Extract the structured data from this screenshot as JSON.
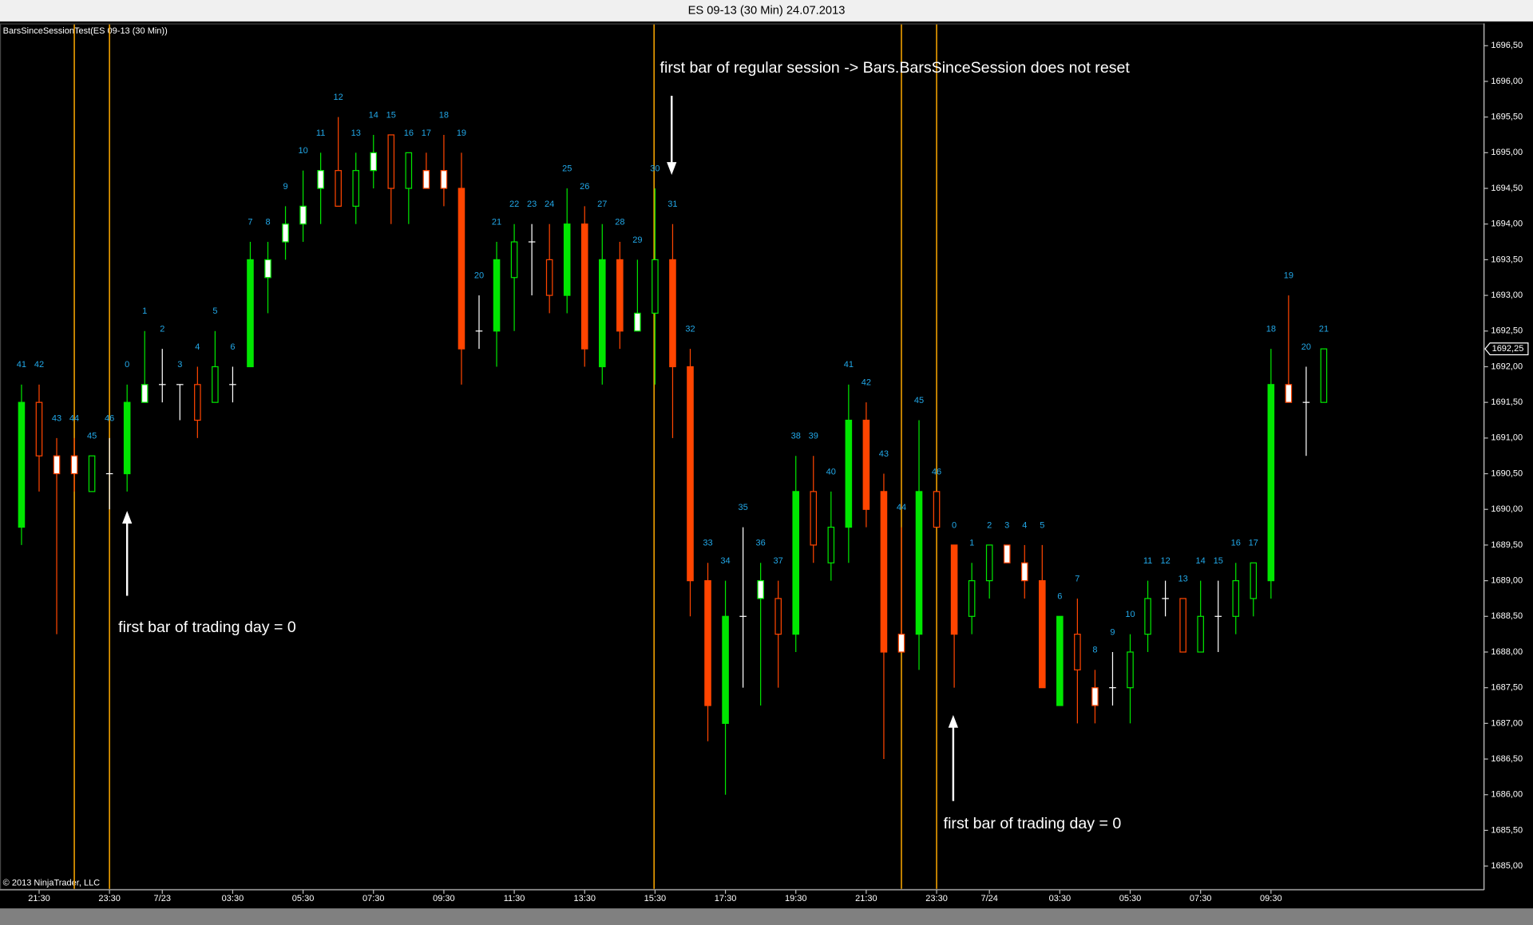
{
  "chart_data": {
    "type": "candlestick",
    "title": "ES 09-13 (30 Min)  24.07.2013",
    "indicator_label": "BarsSinceSessionTest(ES 09-13 (30 Min))",
    "copyright": "© 2013 NinjaTrader, LLC",
    "annotations": [
      "first bar of regular session -> Bars.BarsSinceSession does not reset",
      "first bar of trading day = 0",
      "first bar of trading day = 0"
    ],
    "categories": [
      null,
      "21:30",
      null,
      null,
      null,
      "23:30",
      null,
      null,
      "7/23",
      null,
      null,
      null,
      "03:30",
      null,
      null,
      null,
      "05:30",
      null,
      null,
      null,
      "07:30",
      null,
      null,
      null,
      "09:30",
      null,
      null,
      null,
      "11:30",
      null,
      null,
      null,
      "13:30",
      null,
      null,
      null,
      "15:30",
      null,
      null,
      null,
      "17:30",
      null,
      null,
      null,
      "19:30",
      null,
      null,
      null,
      "21:30",
      null,
      null,
      null,
      "23:30",
      null,
      null,
      "7/24",
      null,
      null,
      null,
      "03:30",
      null,
      null,
      null,
      "05:30",
      null,
      null,
      null,
      "07:30",
      null,
      null,
      null,
      "09:30",
      null,
      null,
      null
    ],
    "bar_labels": [
      41,
      42,
      43,
      44,
      45,
      46,
      0,
      1,
      2,
      3,
      4,
      5,
      6,
      7,
      8,
      9,
      10,
      11,
      12,
      13,
      14,
      15,
      16,
      17,
      18,
      19,
      20,
      21,
      22,
      23,
      24,
      25,
      26,
      27,
      28,
      29,
      30,
      31,
      32,
      33,
      34,
      35,
      36,
      37,
      38,
      39,
      40,
      41,
      42,
      43,
      44,
      45,
      46,
      0,
      1,
      2,
      3,
      4,
      5,
      6,
      7,
      8,
      9,
      10,
      11,
      12,
      13,
      14,
      15,
      16,
      17,
      18,
      19,
      20,
      21
    ],
    "open": [
      1689.75,
      1691.5,
      1690.75,
      1690.75,
      1690.25,
      1690.5,
      1690.5,
      1691.5,
      1691.75,
      1691.75,
      1691.75,
      1691.5,
      1691.75,
      1692,
      1693.25,
      1693.75,
      1694,
      1694.5,
      1694.75,
      1694.25,
      1694.75,
      1695.25,
      1694.5,
      1694.75,
      1694.75,
      1694.5,
      1692.5,
      1692.5,
      1693.25,
      1693.75,
      1693.5,
      1693,
      1694,
      1692,
      1693.5,
      1692.5,
      1692.75,
      1693.5,
      1692,
      1689,
      1687,
      1688.5,
      1688.75,
      1688.75,
      1688.25,
      1690.25,
      1689.25,
      1689.75,
      1691.25,
      1690.25,
      1688.25,
      1688.25,
      1690.25,
      1689.5,
      1688.5,
      1689,
      1689.5,
      1689.25,
      1689,
      1687.25,
      1688.25,
      1687.5,
      1687.5,
      1687.5,
      1688.25,
      1688.75,
      1688.75,
      1688,
      1688.5,
      1688.5,
      1688.75,
      1689,
      1691.75,
      1691.5,
      1691.5
    ],
    "high": [
      1691.75,
      1691.75,
      1691,
      1691,
      1690.75,
      1691,
      1691.75,
      1692.5,
      1692.25,
      1691.75,
      1692,
      1692.5,
      1692,
      1693.75,
      1693.75,
      1694.25,
      1694.75,
      1695,
      1695.5,
      1695,
      1695.25,
      1695.25,
      1695,
      1695,
      1695.25,
      1695,
      1693,
      1693.75,
      1694,
      1694,
      1694,
      1694.5,
      1694.25,
      1694,
      1693.75,
      1693.5,
      1694.5,
      1694,
      1692.25,
      1689.25,
      1689,
      1689.75,
      1689.25,
      1689,
      1690.75,
      1690.75,
      1690.25,
      1691.75,
      1691.5,
      1690.5,
      1689.75,
      1691.25,
      1690.25,
      1689.5,
      1689.25,
      1689.5,
      1689.5,
      1689.5,
      1689.5,
      1688.5,
      1688.75,
      1687.75,
      1688,
      1688.25,
      1689,
      1689,
      1688.75,
      1689,
      1689,
      1689.25,
      1689.25,
      1692.25,
      1693,
      1692,
      1692.25
    ],
    "low": [
      1689.5,
      1690.25,
      1688.25,
      1690.25,
      1690.25,
      1690,
      1690.25,
      1691.5,
      1691.5,
      1691.25,
      1691,
      1691.5,
      1691.5,
      1692,
      1692.75,
      1693.5,
      1693.75,
      1694,
      1694.25,
      1694,
      1694.5,
      1694,
      1694,
      1694.5,
      1694.25,
      1691.75,
      1692.25,
      1692,
      1692.5,
      1693,
      1692.75,
      1692.75,
      1692,
      1691.75,
      1692.25,
      1692.5,
      1691.75,
      1691,
      1688.5,
      1686.75,
      1686,
      1687.5,
      1687.25,
      1687.5,
      1688,
      1689.25,
      1689,
      1689.25,
      1689.75,
      1686.5,
      1688,
      1687.75,
      1689.75,
      1687.5,
      1688.25,
      1688.75,
      1689.25,
      1688.75,
      1687.5,
      1687.25,
      1687,
      1687,
      1687.25,
      1687,
      1688,
      1688.5,
      1688,
      1688,
      1688,
      1688.25,
      1688.5,
      1688.75,
      1691.5,
      1690.75,
      1691.5
    ],
    "close": [
      1691.5,
      1690.75,
      1690.5,
      1690.5,
      1690.75,
      1690.5,
      1691.5,
      1691.75,
      1691.75,
      1691.75,
      1691.25,
      1692,
      1691.75,
      1693.5,
      1693.5,
      1694,
      1694.25,
      1694.75,
      1694.25,
      1694.75,
      1695,
      1694.5,
      1695,
      1694.5,
      1694.5,
      1692.25,
      1692.5,
      1693.5,
      1693.75,
      1693.75,
      1693,
      1694,
      1692.25,
      1693.5,
      1692.5,
      1692.75,
      1693.5,
      1692,
      1689,
      1687.25,
      1688.5,
      1688.5,
      1689,
      1688.25,
      1690.25,
      1689.5,
      1689.75,
      1691.25,
      1690,
      1688,
      1688,
      1690.25,
      1689.75,
      1688.25,
      1689,
      1689.5,
      1689.25,
      1689,
      1687.5,
      1688.5,
      1687.75,
      1687.25,
      1687.5,
      1688,
      1688.75,
      1688.75,
      1688,
      1688.5,
      1688.5,
      1689,
      1689.25,
      1691.75,
      1691.5,
      1691.5,
      1692.25
    ],
    "up_color": "#00e600",
    "down_color": "#ff4500",
    "doji_color": "#ffffff",
    "label_color": "#22a8e8",
    "session_line_color": "#f0a000",
    "last_price": {
      "value": 1692.25,
      "label": "1692,25"
    },
    "ylim": [
      1684.68,
      1696.73
    ],
    "yticks": [
      {
        "value": 1685,
        "label": "1685,00"
      },
      {
        "value": 1685.5,
        "label": "1685,50"
      },
      {
        "value": 1686,
        "label": "1686,00"
      },
      {
        "value": 1686.5,
        "label": "1686,50"
      },
      {
        "value": 1687,
        "label": "1687,00"
      },
      {
        "value": 1687.5,
        "label": "1687,50"
      },
      {
        "value": 1688,
        "label": "1688,00"
      },
      {
        "value": 1688.5,
        "label": "1688,50"
      },
      {
        "value": 1689,
        "label": "1689,00"
      },
      {
        "value": 1689.5,
        "label": "1689,50"
      },
      {
        "value": 1690,
        "label": "1690,00"
      },
      {
        "value": 1690.5,
        "label": "1690,50"
      },
      {
        "value": 1691,
        "label": "1691,00"
      },
      {
        "value": 1691.5,
        "label": "1691,50"
      },
      {
        "value": 1692,
        "label": "1692,00"
      },
      {
        "value": 1692.5,
        "label": "1692,50"
      },
      {
        "value": 1693,
        "label": "1693,00"
      },
      {
        "value": 1693.5,
        "label": "1693,50"
      },
      {
        "value": 1694,
        "label": "1694,00"
      },
      {
        "value": 1694.5,
        "label": "1694,50"
      },
      {
        "value": 1695,
        "label": "1695,00"
      },
      {
        "value": 1695.5,
        "label": "1695,50"
      },
      {
        "value": 1696,
        "label": "1696,00"
      },
      {
        "value": 1696.5,
        "label": "1696,50"
      }
    ]
  }
}
